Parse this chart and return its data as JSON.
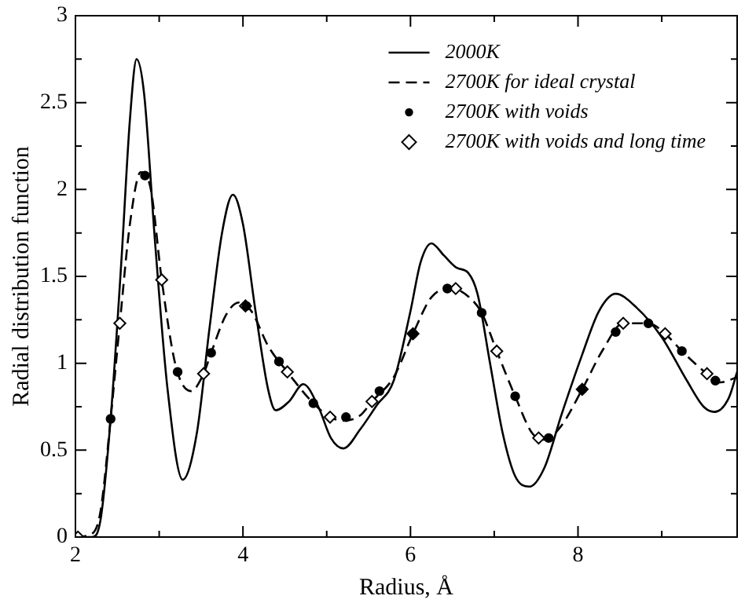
{
  "chart_data": {
    "type": "line",
    "xlabel": "Radius, Å",
    "ylabel": "Radial distribution function",
    "xlim": [
      2,
      9.9
    ],
    "xticks": [
      2,
      {
        "value": 3,
        "label": null
      },
      4,
      {
        "value": 5,
        "label": null
      },
      6,
      {
        "value": 7,
        "label": null
      },
      8,
      {
        "value": 9,
        "label": null
      }
    ],
    "ylim": [
      0,
      3
    ],
    "yticks": [
      0,
      {
        "value": 0.25,
        "label": null
      },
      0.5,
      {
        "value": 0.75,
        "label": null
      },
      1,
      {
        "value": 1.25,
        "label": null
      },
      1.5,
      {
        "value": 1.75,
        "label": null
      },
      2,
      {
        "value": 2.25,
        "label": null
      },
      2.5,
      {
        "value": 2.75,
        "label": null
      },
      3
    ],
    "legend": "top right",
    "grid": false,
    "series": [
      {
        "name": "2000K",
        "color": "#000000",
        "marker": "none",
        "line_style": "solid",
        "x": [
          2.0,
          2.2,
          2.3,
          2.42,
          2.55,
          2.65,
          2.73,
          2.82,
          2.95,
          3.1,
          3.28,
          3.45,
          3.6,
          3.75,
          3.88,
          4.0,
          4.15,
          4.3,
          4.39,
          4.55,
          4.72,
          4.9,
          5.05,
          5.2,
          5.4,
          5.6,
          5.8,
          6.0,
          6.12,
          6.25,
          6.4,
          6.55,
          6.69,
          6.8,
          6.95,
          7.1,
          7.25,
          7.42,
          7.6,
          7.8,
          8.05,
          8.25,
          8.45,
          8.7,
          9.0,
          9.3,
          9.5,
          9.63,
          9.8,
          9.9
        ],
        "values": [
          0,
          0,
          0.1,
          0.68,
          1.6,
          2.4,
          2.75,
          2.55,
          1.7,
          0.85,
          0.33,
          0.6,
          1.2,
          1.75,
          1.97,
          1.8,
          1.3,
          0.85,
          0.73,
          0.78,
          0.88,
          0.75,
          0.57,
          0.51,
          0.62,
          0.76,
          0.9,
          1.3,
          1.58,
          1.69,
          1.62,
          1.55,
          1.52,
          1.4,
          1.0,
          0.6,
          0.35,
          0.29,
          0.4,
          0.7,
          1.05,
          1.3,
          1.4,
          1.32,
          1.15,
          0.9,
          0.75,
          0.72,
          0.8,
          0.95
        ]
      },
      {
        "name": "2700K for ideal crystal",
        "color": "#000000",
        "marker": "none",
        "line_style": "dashed",
        "x": [
          2.0,
          2.2,
          2.3,
          2.42,
          2.53,
          2.65,
          2.78,
          2.9,
          3.03,
          3.2,
          3.38,
          3.53,
          3.62,
          3.8,
          3.95,
          4.1,
          4.3,
          4.53,
          4.84,
          5.04,
          5.2,
          5.4,
          5.54,
          5.8,
          6.03,
          6.25,
          6.5,
          6.7,
          6.85,
          7.03,
          7.25,
          7.45,
          7.6,
          7.8,
          8.05,
          8.3,
          8.54,
          8.84,
          9.04,
          9.24,
          9.54,
          9.7,
          9.9
        ],
        "values": [
          0,
          0.02,
          0.15,
          0.68,
          1.23,
          1.8,
          2.1,
          2.0,
          1.48,
          0.98,
          0.84,
          0.94,
          1.06,
          1.28,
          1.35,
          1.3,
          1.1,
          0.95,
          0.77,
          0.69,
          0.67,
          0.7,
          0.78,
          0.92,
          1.17,
          1.38,
          1.43,
          1.38,
          1.29,
          1.07,
          0.81,
          0.6,
          0.56,
          0.64,
          0.85,
          1.08,
          1.23,
          1.23,
          1.17,
          1.07,
          0.94,
          0.89,
          0.92
        ]
      },
      {
        "name": "2700K with voids",
        "type": "scatter",
        "color": "#000000",
        "marker": "circle",
        "x": [
          2.42,
          2.83,
          3.22,
          3.62,
          4.04,
          4.43,
          4.84,
          5.23,
          5.63,
          6.03,
          6.44,
          6.85,
          7.25,
          7.65,
          8.05,
          8.45,
          8.84,
          9.24,
          9.64
        ],
        "values": [
          0.68,
          2.08,
          0.95,
          1.06,
          1.33,
          1.01,
          0.77,
          0.69,
          0.84,
          1.17,
          1.43,
          1.29,
          0.81,
          0.57,
          0.85,
          1.18,
          1.23,
          1.07,
          0.9
        ]
      },
      {
        "name": "2700K with voids and long time",
        "type": "scatter",
        "color": "#000000",
        "marker": "diamond",
        "x": [
          2.03,
          2.53,
          3.03,
          3.53,
          4.03,
          4.53,
          5.04,
          5.54,
          6.03,
          6.54,
          7.03,
          7.53,
          8.05,
          8.54,
          9.04,
          9.54
        ],
        "values": [
          0,
          1.23,
          1.48,
          0.94,
          1.33,
          0.95,
          0.69,
          0.78,
          1.17,
          1.43,
          1.07,
          0.57,
          0.85,
          1.23,
          1.17,
          0.94
        ]
      }
    ]
  }
}
